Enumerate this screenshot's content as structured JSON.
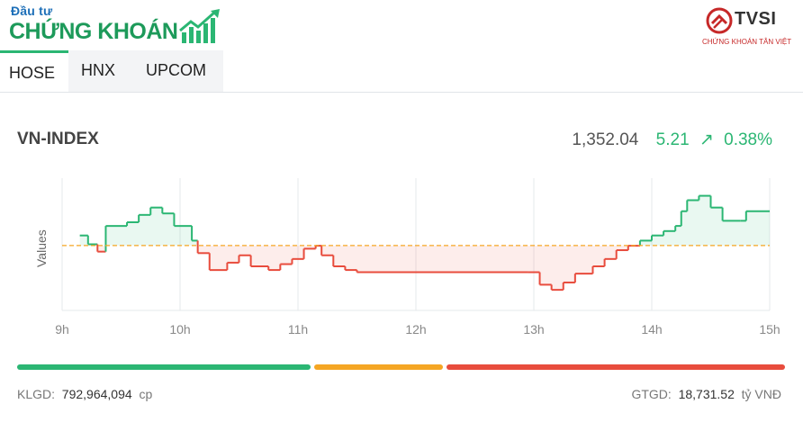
{
  "brand": {
    "line1": "Đầu tư",
    "line2": "CHỨNG KHOÁN"
  },
  "partner": {
    "name": "TVSI",
    "subtitle": "CHỨNG KHOÁN TÂN VIỆT"
  },
  "tabs": [
    "HOSE",
    "HNX",
    "UPCOM"
  ],
  "index": {
    "name": "VN-INDEX",
    "value": "1,352.04",
    "change": "5.21",
    "change_pct": "0.38%",
    "direction": "up"
  },
  "colors": {
    "up": "#2bb673",
    "down": "#e84c3d",
    "unchanged": "#f5a623",
    "reference": "#f5a623"
  },
  "chart_data": {
    "type": "line",
    "ylabel": "Values",
    "x_ticks": [
      "9h",
      "10h",
      "11h",
      "12h",
      "13h",
      "14h",
      "15h"
    ],
    "reference": 1346.83,
    "ylim": [
      1338,
      1356
    ],
    "points": [
      [
        9.15,
        1348.2
      ],
      [
        9.22,
        1347.0
      ],
      [
        9.3,
        1346.0
      ],
      [
        9.37,
        1349.5
      ],
      [
        9.55,
        1350.0
      ],
      [
        9.65,
        1351.0
      ],
      [
        9.75,
        1352.0
      ],
      [
        9.85,
        1351.2
      ],
      [
        9.95,
        1349.5
      ],
      [
        10.1,
        1347.5
      ],
      [
        10.15,
        1345.8
      ],
      [
        10.25,
        1343.5
      ],
      [
        10.4,
        1344.5
      ],
      [
        10.5,
        1345.5
      ],
      [
        10.6,
        1344.0
      ],
      [
        10.75,
        1343.5
      ],
      [
        10.85,
        1344.3
      ],
      [
        10.95,
        1345.0
      ],
      [
        11.05,
        1346.4
      ],
      [
        11.15,
        1346.8
      ],
      [
        11.2,
        1345.5
      ],
      [
        11.3,
        1344.0
      ],
      [
        11.4,
        1343.5
      ],
      [
        11.5,
        1343.2
      ],
      [
        12.0,
        1343.2
      ],
      [
        12.5,
        1343.2
      ],
      [
        12.95,
        1343.2
      ],
      [
        13.05,
        1341.5
      ],
      [
        13.15,
        1340.8
      ],
      [
        13.25,
        1341.8
      ],
      [
        13.35,
        1343.0
      ],
      [
        13.5,
        1344.0
      ],
      [
        13.6,
        1345.0
      ],
      [
        13.7,
        1346.2
      ],
      [
        13.8,
        1346.8
      ],
      [
        13.9,
        1347.5
      ],
      [
        14.0,
        1348.2
      ],
      [
        14.1,
        1348.8
      ],
      [
        14.2,
        1349.5
      ],
      [
        14.25,
        1351.5
      ],
      [
        14.3,
        1353.0
      ],
      [
        14.4,
        1353.6
      ],
      [
        14.5,
        1352.0
      ],
      [
        14.6,
        1350.2
      ],
      [
        14.75,
        1350.2
      ],
      [
        14.8,
        1351.5
      ],
      [
        15.0,
        1351.5
      ]
    ]
  },
  "breadth": {
    "up_ratio": 0.385,
    "unchanged_ratio": 0.172,
    "down_ratio": 0.443
  },
  "footer": {
    "volume_label": "KLGD:",
    "volume": "792,964,094",
    "volume_unit": "cp",
    "value_label": "GTGD:",
    "value": "18,731.52",
    "value_unit": "tỷ VNĐ"
  }
}
